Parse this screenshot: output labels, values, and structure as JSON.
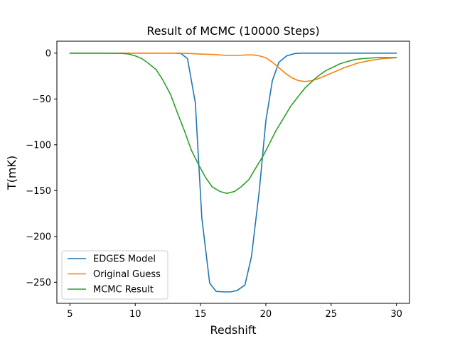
{
  "chart_data": {
    "type": "line",
    "title": "Result of MCMC (10000 Steps)",
    "xlabel": "Redshift",
    "ylabel": "T(mK)",
    "xlim": [
      4,
      31
    ],
    "ylim": [
      -273,
      13
    ],
    "xticks": [
      5,
      10,
      15,
      20,
      25,
      30
    ],
    "yticks": [
      0,
      -50,
      -100,
      -150,
      -200,
      -250
    ],
    "grid": false,
    "legend": "lower-left",
    "series": [
      {
        "name": "EDGES Model",
        "color": "#1f77b4",
        "x": [
          5,
          6,
          7,
          8,
          9,
          10,
          11,
          12,
          13,
          13.5,
          14,
          14.6,
          15.1,
          15.7,
          16.2,
          16.8,
          17.3,
          17.8,
          18.4,
          18.9,
          19.5,
          20,
          20.5,
          21,
          21.6,
          22.2,
          22.7,
          23.3,
          24,
          25,
          26,
          27,
          28,
          29,
          30
        ],
        "y": [
          0,
          0,
          0,
          0,
          0,
          0,
          0,
          0,
          0,
          -0.5,
          -6,
          -54,
          -180,
          -251,
          -260,
          -260.5,
          -260.5,
          -259,
          -253,
          -222,
          -150,
          -74,
          -30,
          -10,
          -3,
          -0.5,
          0,
          0,
          0,
          0,
          0,
          0,
          0,
          0,
          0
        ]
      },
      {
        "name": "Original Guess",
        "color": "#ff7f0e",
        "x": [
          5,
          6,
          7,
          8,
          9,
          10,
          11,
          12,
          13,
          14,
          15,
          16,
          17,
          17.5,
          18,
          18.5,
          19,
          19.5,
          20,
          20.5,
          21,
          21.5,
          22,
          22.5,
          23,
          23.5,
          24,
          24.5,
          25,
          26,
          27,
          28,
          29,
          30
        ],
        "y": [
          0,
          0,
          0,
          0,
          0,
          0,
          0,
          0,
          0,
          -0.3,
          -1,
          -1.5,
          -2.5,
          -2.5,
          -2.5,
          -2,
          -2,
          -3,
          -5,
          -10,
          -16,
          -22,
          -27,
          -30,
          -31,
          -30,
          -28,
          -25,
          -22,
          -16,
          -11,
          -8,
          -6,
          -5
        ]
      },
      {
        "name": "MCMC Result",
        "color": "#2ca02c",
        "x": [
          5,
          6,
          7,
          8,
          9,
          9.5,
          10,
          10.5,
          11,
          11.6,
          12.1,
          12.7,
          13.2,
          13.8,
          14.3,
          14.9,
          15.4,
          15.9,
          16.5,
          17,
          17.6,
          18.1,
          18.7,
          19.2,
          19.8,
          20.3,
          20.8,
          21.4,
          21.9,
          22.5,
          23,
          23.6,
          24.1,
          24.6,
          25.2,
          25.7,
          26.3,
          26.8,
          27.4,
          27.9,
          28.5,
          29,
          29.5,
          30
        ],
        "y": [
          0,
          0,
          0,
          0,
          -0.3,
          -1,
          -3,
          -6,
          -11,
          -18,
          -29,
          -45,
          -64,
          -86,
          -106,
          -123,
          -136,
          -146,
          -151,
          -153,
          -151,
          -146,
          -138,
          -126,
          -112,
          -98,
          -84,
          -70,
          -58,
          -47,
          -38,
          -30,
          -24,
          -19,
          -15,
          -11.5,
          -9,
          -7,
          -6,
          -5.5,
          -5,
          -5,
          -5,
          -5
        ]
      }
    ]
  }
}
